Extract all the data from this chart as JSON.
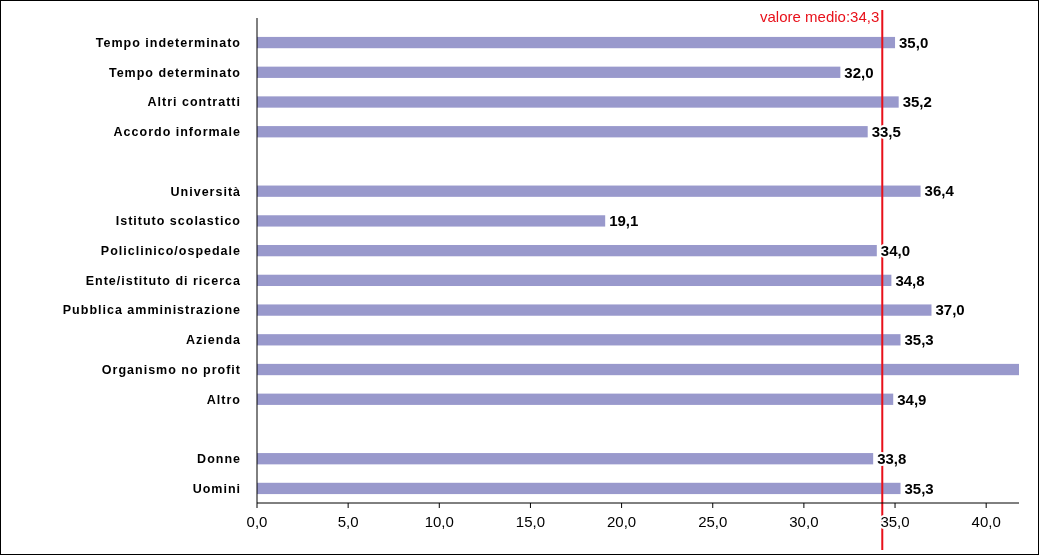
{
  "chart_data": {
    "type": "bar",
    "orientation": "horizontal",
    "categories": [
      "Tempo indeterminato",
      "Tempo determinato",
      "Altri contratti",
      "Accordo informale",
      null,
      "Università",
      "Istituto scolastico",
      "Policlinico/ospedale",
      "Ente/istituto di ricerca",
      "Pubblica amministrazione",
      "Azienda",
      "Organismo no profit",
      "Altro",
      null,
      "Donne",
      "Uomini"
    ],
    "values": [
      35.0,
      32.0,
      35.2,
      33.5,
      null,
      36.4,
      19.1,
      34.0,
      34.8,
      37.0,
      35.3,
      41.8,
      34.9,
      null,
      33.8,
      35.3
    ],
    "value_labels": [
      "35,0",
      "32,0",
      "35,2",
      "33,5",
      null,
      "36,4",
      "19,1",
      "34,0",
      "34,8",
      "37,0",
      "35,3",
      null,
      "34,9",
      null,
      "33,8",
      "35,3"
    ],
    "color": "#9999cc",
    "xlim": [
      0,
      41.8
    ],
    "xticks": [
      {
        "value": 0,
        "label": "0,0"
      },
      {
        "value": 5,
        "label": "5,0"
      },
      {
        "value": 10,
        "label": "10,0"
      },
      {
        "value": 15,
        "label": "15,0"
      },
      {
        "value": 20,
        "label": "20,0"
      },
      {
        "value": 25,
        "label": "25,0"
      },
      {
        "value": 30,
        "label": "30,0"
      },
      {
        "value": 35,
        "label": "35,0"
      },
      {
        "value": 40,
        "label": "40,0"
      }
    ],
    "ref_lines": [
      {
        "axis": "x",
        "value": 34.3,
        "label": "valore medio:34,3",
        "color": "#e8101a"
      }
    ],
    "grid": false
  }
}
